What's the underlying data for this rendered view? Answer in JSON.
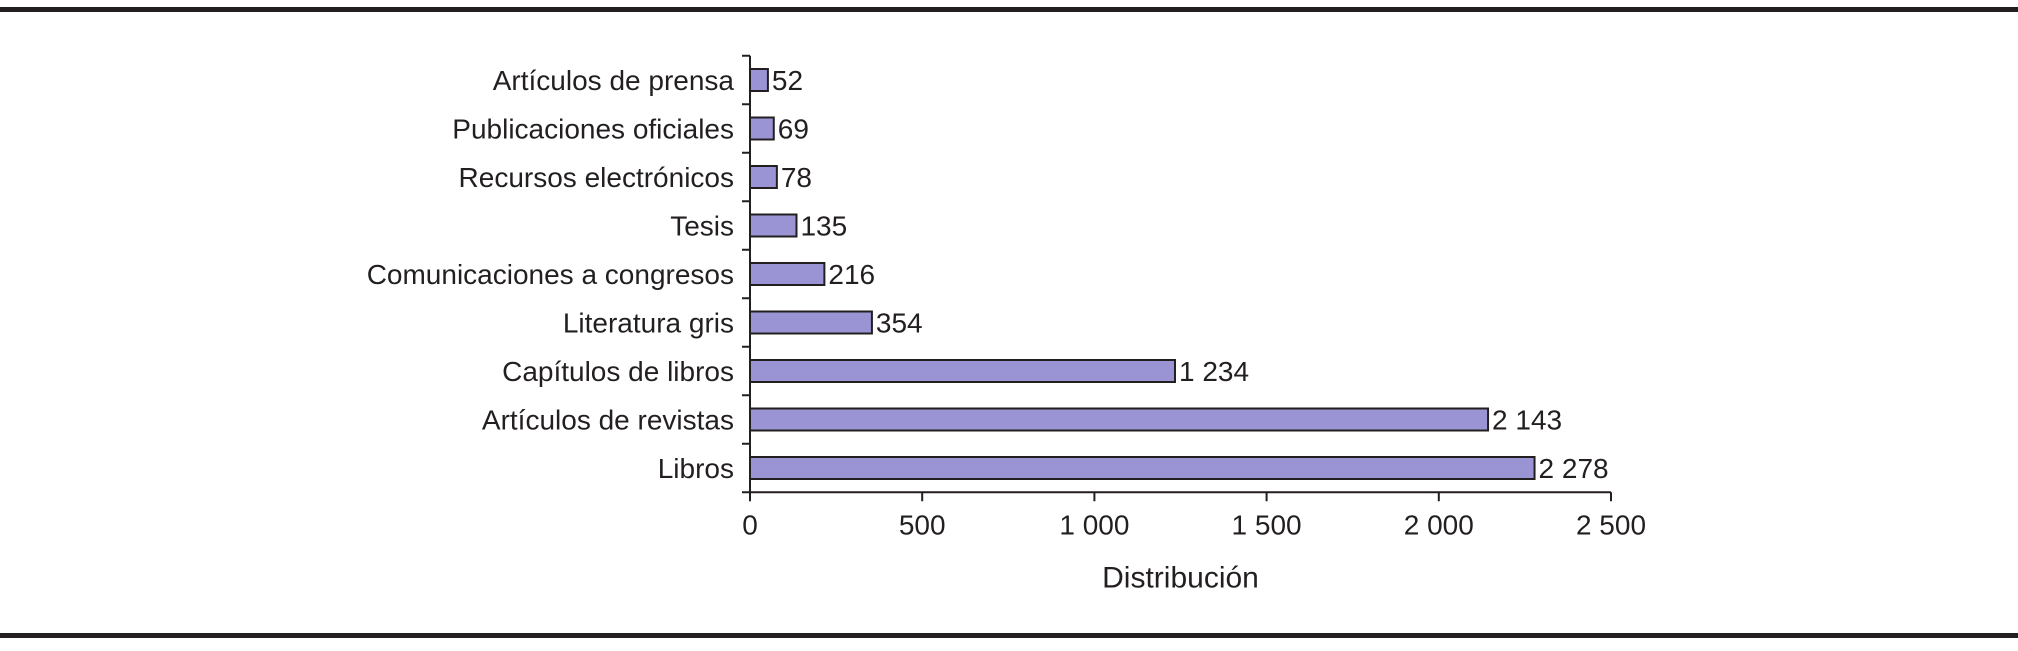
{
  "chart_data": {
    "type": "bar",
    "orientation": "horizontal",
    "categories": [
      "Artículos de prensa",
      "Publicaciones oficiales",
      "Recursos electrónicos",
      "Tesis",
      "Comunicaciones a congresos",
      "Literatura gris",
      "Capítulos de libros",
      "Artículos de revistas",
      "Libros"
    ],
    "values": [
      52,
      69,
      78,
      135,
      216,
      354,
      1234,
      2143,
      2278
    ],
    "value_labels": [
      "52",
      "69",
      "78",
      "135",
      "216",
      "354",
      "1 234",
      "2 143",
      "2 278"
    ],
    "xlabel": "Distribución",
    "ylabel": "",
    "xlim": [
      0,
      2500
    ],
    "xticks": [
      0,
      500,
      1000,
      1500,
      2000,
      2500
    ],
    "xtick_labels": [
      "0",
      "500",
      "1 000",
      "1 500",
      "2 000",
      "2 500"
    ],
    "grid": false,
    "bar_color": "#9a94d4",
    "bar_edge_color": "#231f20"
  }
}
